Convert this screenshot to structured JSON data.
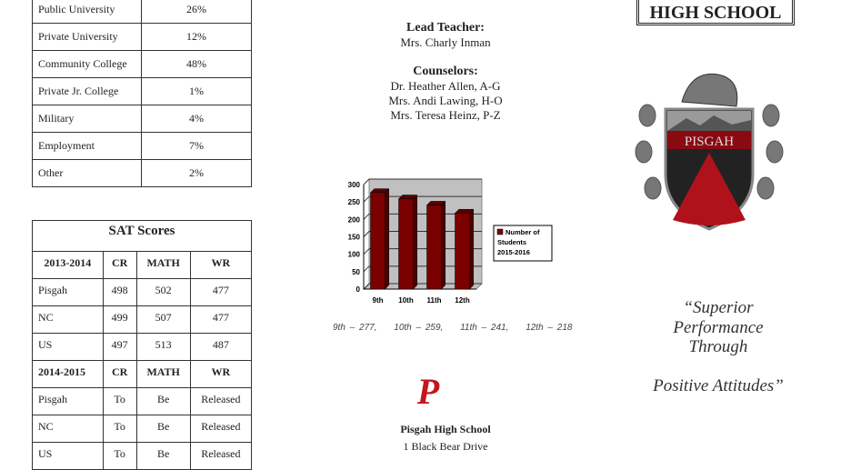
{
  "plans_table": [
    {
      "label": "Public University",
      "value": "26%"
    },
    {
      "label": "Private University",
      "value": "12%"
    },
    {
      "label": "Community College",
      "value": "48%"
    },
    {
      "label": "Private Jr. College",
      "value": "1%"
    },
    {
      "label": "Military",
      "value": "4%"
    },
    {
      "label": "Employment",
      "value": "7%"
    },
    {
      "label": "Other",
      "value": "2%"
    }
  ],
  "sat": {
    "title": "SAT Scores",
    "sections": [
      {
        "year": "2013-2014",
        "cols": [
          "CR",
          "MATH",
          "WR"
        ],
        "rows": [
          [
            "Pisgah",
            "498",
            "502",
            "477"
          ],
          [
            "NC",
            "499",
            "507",
            "477"
          ],
          [
            "US",
            "497",
            "513",
            "487"
          ]
        ]
      },
      {
        "year": "2014-2015",
        "cols": [
          "CR",
          "MATH",
          "WR"
        ],
        "rows": [
          [
            "Pisgah",
            "To",
            "Be",
            "Released"
          ],
          [
            "NC",
            "To",
            "Be",
            "Released"
          ],
          [
            "US",
            "To",
            "Be",
            "Released"
          ]
        ]
      }
    ]
  },
  "staff": {
    "lead_heading": "Lead Teacher:",
    "lead_name": "Mrs. Charly Inman",
    "counselors_heading": "Counselors:",
    "counselors": [
      "Dr. Heather Allen, A-G",
      "Mrs. Andi Lawing, H-O",
      "Mrs. Teresa Heinz, P-Z"
    ]
  },
  "chart_data": {
    "type": "bar",
    "categories": [
      "9th",
      "10th",
      "11th",
      "12th"
    ],
    "series": [
      {
        "name": "Number of Students 2015-2016",
        "values": [
          277,
          259,
          241,
          218
        ]
      }
    ],
    "yticks": [
      0,
      50,
      100,
      150,
      200,
      250,
      300
    ],
    "ylim": [
      0,
      300
    ],
    "grid": true,
    "legend": "right",
    "color": "#7a0000"
  },
  "notes": [
    "9th – 277,",
    "10th – 259,",
    "11th – 241,",
    "12th – 218"
  ],
  "address": {
    "school": "Pisgah High School",
    "street": "1 Black Bear Drive"
  },
  "logo": {
    "letter": "P",
    "color": "#c4161c",
    "crest_text": "PISGAH"
  },
  "header_badge": "HIGH SCHOOL",
  "motto": [
    "“Superior Performance",
    "Through",
    "Positive Attitudes”"
  ]
}
